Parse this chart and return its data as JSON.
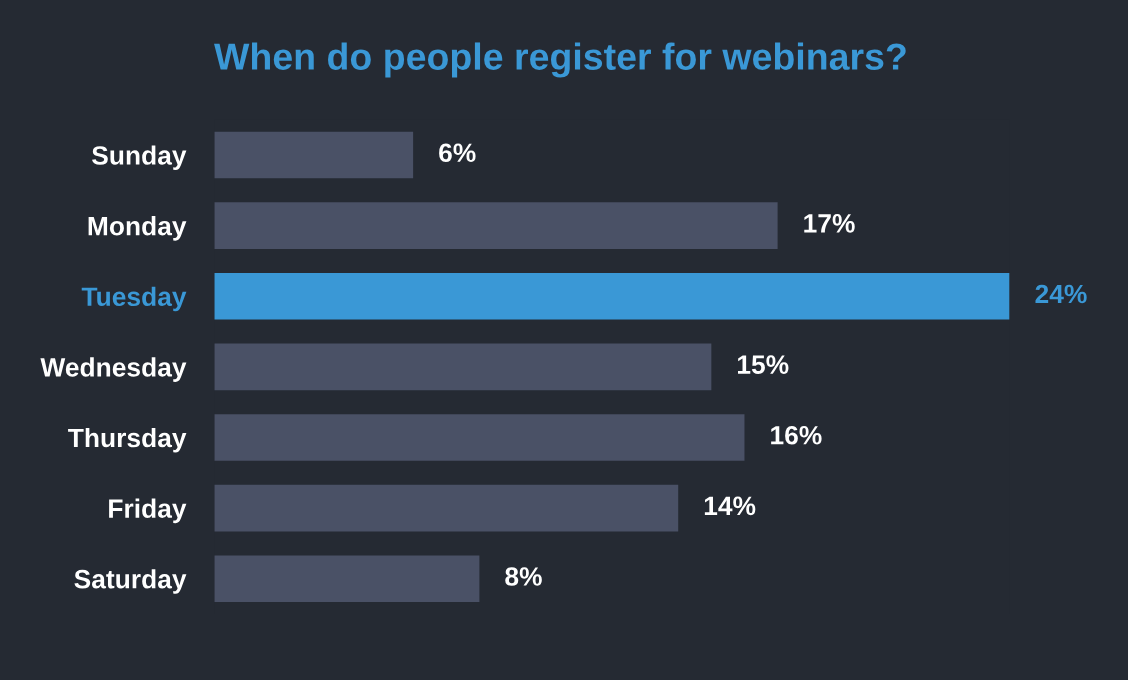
{
  "chart_data": {
    "type": "bar",
    "orientation": "horizontal",
    "title": "When do people register for webinars?",
    "categories": [
      "Sunday",
      "Monday",
      "Tuesday",
      "Wednesday",
      "Thursday",
      "Friday",
      "Saturday"
    ],
    "values": [
      6,
      17,
      24,
      15,
      16,
      14,
      8
    ],
    "value_labels": [
      "6%",
      "17%",
      "24%",
      "15%",
      "16%",
      "14%",
      "8%"
    ],
    "colors": [
      "#4a5166",
      "#4a5166",
      "#3a98d6",
      "#4a5166",
      "#4a5166",
      "#4a5166",
      "#4a5166"
    ],
    "grid": false,
    "legend": false
  }
}
